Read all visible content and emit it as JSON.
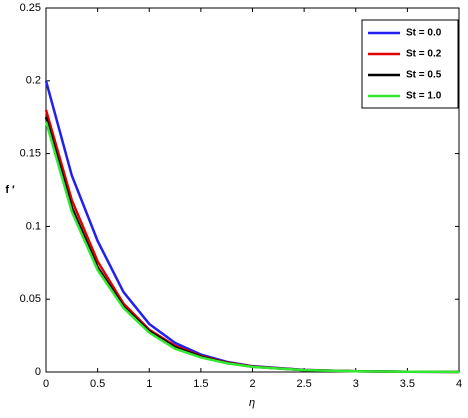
{
  "chart_data": {
    "type": "line",
    "x_label": "η",
    "y_label": "f ′",
    "x": [
      0,
      0.25,
      0.5,
      0.75,
      1,
      1.25,
      1.5,
      1.75,
      2,
      2.5,
      3,
      3.5,
      4
    ],
    "series": [
      {
        "name": "St = 0.0",
        "color": "#2020f0",
        "values": [
          0.2,
          0.135,
          0.09,
          0.055,
          0.033,
          0.02,
          0.012,
          0.007,
          0.004,
          0.0015,
          0.0005,
          0.0002,
          0.0001
        ]
      },
      {
        "name": "St = 0.2",
        "color": "#e00000",
        "values": [
          0.18,
          0.118,
          0.076,
          0.047,
          0.029,
          0.018,
          0.011,
          0.0065,
          0.0038,
          0.0014,
          0.0005,
          0.0002,
          0.0001
        ]
      },
      {
        "name": "St = 0.5",
        "color": "#000000",
        "values": [
          0.175,
          0.113,
          0.072,
          0.045,
          0.028,
          0.017,
          0.0105,
          0.0062,
          0.0036,
          0.0013,
          0.0005,
          0.0002,
          0.0001
        ]
      },
      {
        "name": "St = 1.0",
        "color": "#33e833",
        "values": [
          0.172,
          0.11,
          0.07,
          0.044,
          0.027,
          0.016,
          0.01,
          0.006,
          0.0035,
          0.0013,
          0.0005,
          0.0002,
          0.0001
        ]
      }
    ],
    "xlim": [
      0,
      4
    ],
    "xticks": [
      0,
      0.5,
      1,
      1.5,
      2,
      2.5,
      3,
      3.5,
      4
    ],
    "ylim": [
      0,
      0.25
    ],
    "yticks": [
      0,
      0.05,
      0.1,
      0.15,
      0.2,
      0.25
    ],
    "legend": "upper-right"
  }
}
